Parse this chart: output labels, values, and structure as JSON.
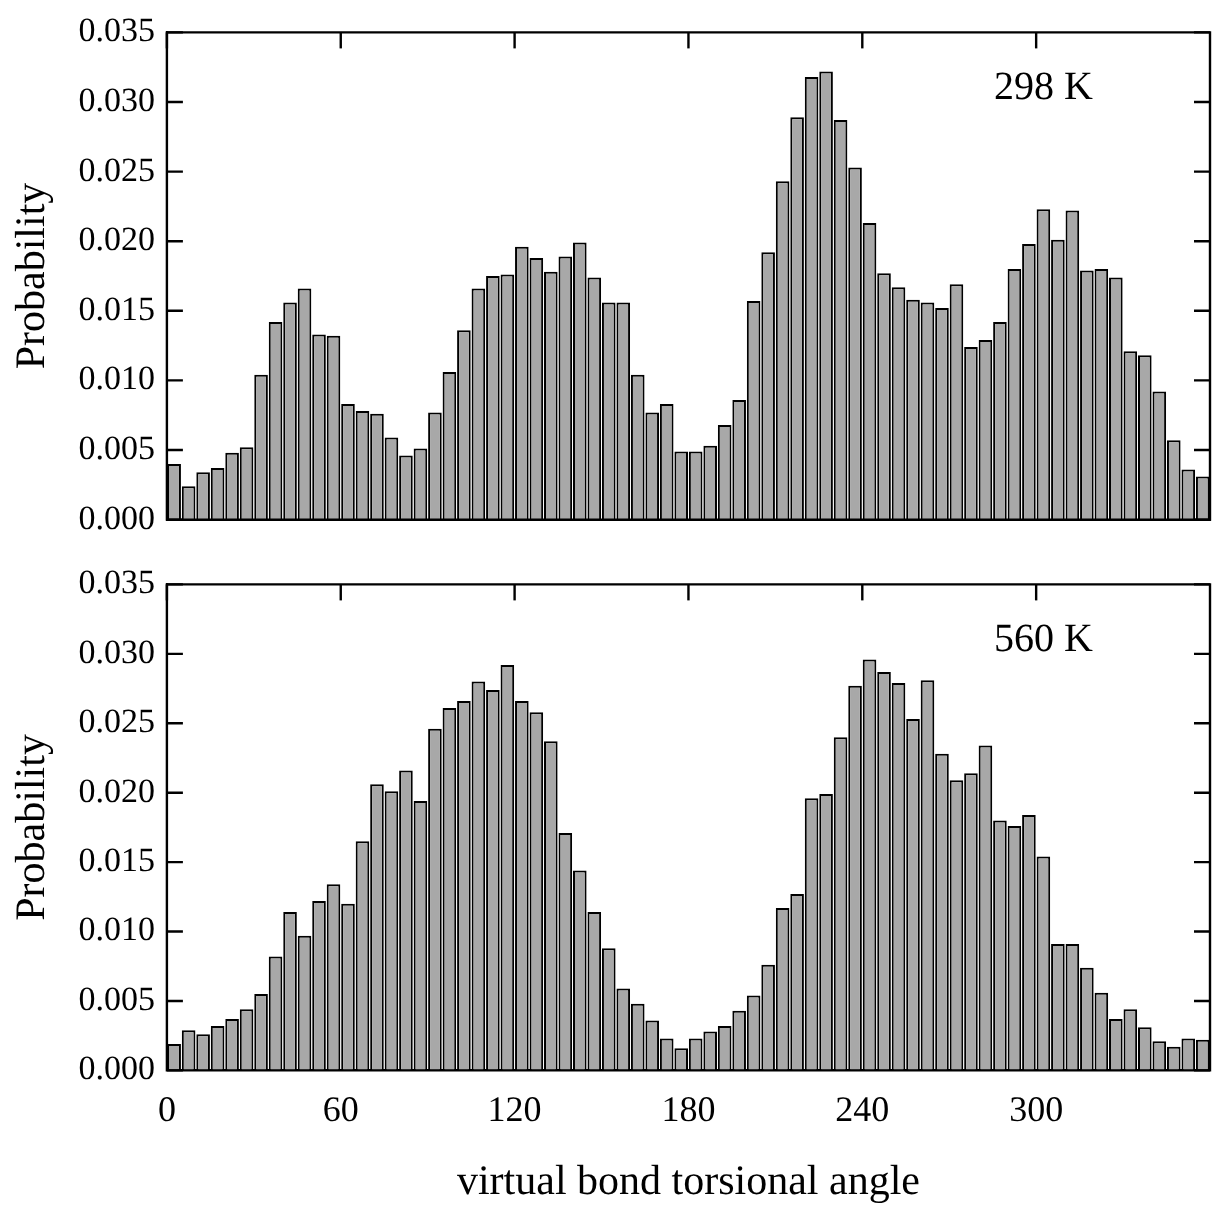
{
  "chart_data": [
    {
      "type": "histogram",
      "ylabel": "Probability",
      "annotations": [
        "298 K"
      ],
      "color": "#a8a8a8",
      "tick_labels": "y",
      "bins": [
        0,
        5,
        10,
        15,
        20,
        25,
        30,
        35,
        40,
        45,
        50,
        55,
        60,
        65,
        70,
        75,
        80,
        85,
        90,
        95,
        100,
        105,
        110,
        115,
        120,
        125,
        130,
        135,
        140,
        145,
        150,
        155,
        160,
        165,
        170,
        175,
        180,
        185,
        190,
        195,
        200,
        205,
        210,
        215,
        220,
        225,
        230,
        235,
        240,
        245,
        250,
        255,
        260,
        265,
        270,
        275,
        280,
        285,
        290,
        295,
        300,
        305,
        310,
        315,
        320,
        325,
        330,
        335,
        340,
        345,
        350,
        355,
        360
      ],
      "values": [
        0.004,
        0.0024,
        0.0034,
        0.0037,
        0.0048,
        0.0052,
        0.0104,
        0.0142,
        0.0156,
        0.0166,
        0.0133,
        0.0132,
        0.0083,
        0.0078,
        0.0076,
        0.0059,
        0.0046,
        0.0051,
        0.0077,
        0.0106,
        0.0136,
        0.0166,
        0.0175,
        0.0176,
        0.0196,
        0.0188,
        0.0178,
        0.0189,
        0.0199,
        0.0174,
        0.0156,
        0.0156,
        0.0104,
        0.0077,
        0.0083,
        0.0049,
        0.0049,
        0.0053,
        0.0068,
        0.0086,
        0.0157,
        0.0192,
        0.0243,
        0.0289,
        0.0318,
        0.0322,
        0.0287,
        0.0253,
        0.0213,
        0.0177,
        0.0167,
        0.0158,
        0.0156,
        0.0152,
        0.0169,
        0.0124,
        0.0129,
        0.0142,
        0.018,
        0.0198,
        0.0223,
        0.0201,
        0.0222,
        0.0179,
        0.018,
        0.0174,
        0.0121,
        0.0118,
        0.0092,
        0.0057,
        0.0036,
        0.0031
      ],
      "xlim": [
        0,
        360
      ],
      "xticks": [
        0,
        60,
        120,
        180,
        240,
        300
      ],
      "ylim": [
        0,
        0.035
      ],
      "yticks": [
        {
          "value": 0,
          "label": "0.000"
        },
        {
          "value": 0.005,
          "label": "0.005"
        },
        {
          "value": 0.01,
          "label": "0.010"
        },
        {
          "value": 0.015,
          "label": "0.015"
        },
        {
          "value": 0.02,
          "label": "0.020"
        },
        {
          "value": 0.025,
          "label": "0.025"
        },
        {
          "value": 0.03,
          "label": "0.030"
        },
        {
          "value": 0.035,
          "label": "0.035"
        }
      ]
    },
    {
      "type": "histogram",
      "xlabel": "virtual bond torsional angle",
      "ylabel": "Probability",
      "annotations": [
        "560 K"
      ],
      "color": "#a8a8a8",
      "bins": [
        0,
        5,
        10,
        15,
        20,
        25,
        30,
        35,
        40,
        45,
        50,
        55,
        60,
        65,
        70,
        75,
        80,
        85,
        90,
        95,
        100,
        105,
        110,
        115,
        120,
        125,
        130,
        135,
        140,
        145,
        150,
        155,
        160,
        165,
        170,
        175,
        180,
        185,
        190,
        195,
        200,
        205,
        210,
        215,
        220,
        225,
        230,
        235,
        240,
        245,
        250,
        255,
        260,
        265,
        270,
        275,
        280,
        285,
        290,
        295,
        300,
        305,
        310,
        315,
        320,
        325,
        330,
        335,
        340,
        345,
        350,
        355,
        360
      ],
      "values": [
        0.0019,
        0.0029,
        0.0026,
        0.0032,
        0.0037,
        0.0044,
        0.0055,
        0.0082,
        0.0114,
        0.0097,
        0.0122,
        0.0134,
        0.012,
        0.0165,
        0.0206,
        0.0201,
        0.0216,
        0.0194,
        0.0246,
        0.0261,
        0.0266,
        0.028,
        0.0274,
        0.0292,
        0.0266,
        0.0258,
        0.0237,
        0.0171,
        0.0144,
        0.0114,
        0.0088,
        0.0059,
        0.0048,
        0.0036,
        0.0023,
        0.0016,
        0.0023,
        0.0028,
        0.0032,
        0.0043,
        0.0054,
        0.0076,
        0.0117,
        0.0127,
        0.0196,
        0.0199,
        0.024,
        0.0277,
        0.0296,
        0.0287,
        0.0279,
        0.0253,
        0.0281,
        0.0228,
        0.0209,
        0.0214,
        0.0234,
        0.018,
        0.0176,
        0.0184,
        0.0154,
        0.0091,
        0.0091,
        0.0074,
        0.0056,
        0.0037,
        0.0044,
        0.0031,
        0.0021,
        0.0017,
        0.0023,
        0.0022
      ],
      "xlim": [
        0,
        360
      ],
      "xticks": [
        0,
        60,
        120,
        180,
        240,
        300
      ],
      "ylim": [
        0,
        0.035
      ],
      "yticks": [
        {
          "value": 0,
          "label": "0.000"
        },
        {
          "value": 0.005,
          "label": "0.005"
        },
        {
          "value": 0.01,
          "label": "0.010"
        },
        {
          "value": 0.015,
          "label": "0.015"
        },
        {
          "value": 0.02,
          "label": "0.020"
        },
        {
          "value": 0.025,
          "label": "0.025"
        },
        {
          "value": 0.03,
          "label": "0.030"
        },
        {
          "value": 0.035,
          "label": "0.035"
        }
      ]
    }
  ]
}
